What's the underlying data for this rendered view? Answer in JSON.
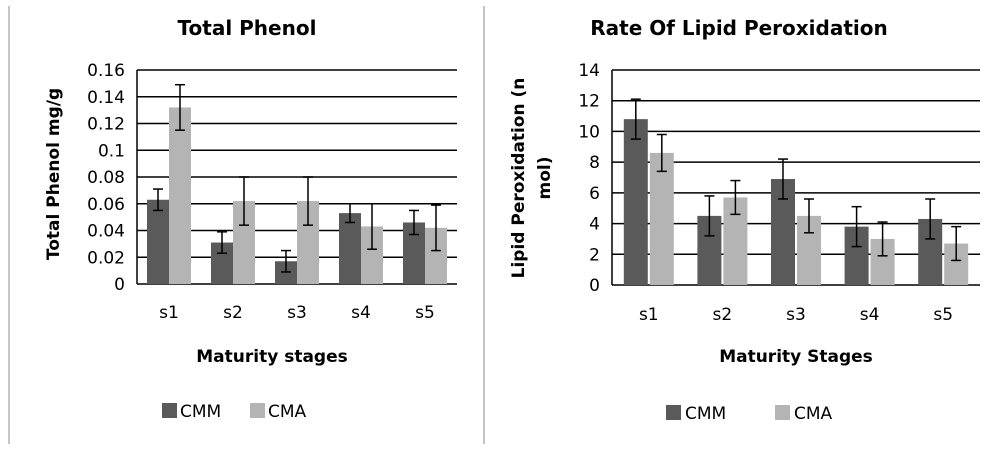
{
  "colors": {
    "CMM": "#5a5a5a",
    "CMA": "#b4b4b4",
    "grid": "#000000",
    "divider": "#888888"
  },
  "chart_data": [
    {
      "type": "bar",
      "title": "Total Phenol",
      "xlabel": "Maturity stages",
      "ylabel": "Total Phenol mg/g",
      "categories": [
        "s1",
        "s2",
        "s3",
        "s4",
        "s5"
      ],
      "ylim": [
        0,
        0.16
      ],
      "yticks": [
        0,
        0.02,
        0.04,
        0.06,
        0.08,
        0.1,
        0.12,
        0.14,
        0.16
      ],
      "ytick_labels": [
        "0",
        "0.02",
        "0.04",
        "0.06",
        "0.08",
        "0.1",
        "0.12",
        "0.14",
        "0.16"
      ],
      "grid": true,
      "legend": "bottom",
      "series": [
        {
          "name": "CMM",
          "values": [
            0.063,
            0.031,
            0.017,
            0.053,
            0.046
          ],
          "errors": [
            0.008,
            0.008,
            0.008,
            0.007,
            0.009
          ]
        },
        {
          "name": "CMA",
          "values": [
            0.132,
            0.062,
            0.062,
            0.043,
            0.042
          ],
          "errors": [
            0.017,
            0.018,
            0.018,
            0.017,
            0.017
          ]
        }
      ]
    },
    {
      "type": "bar",
      "title": "Rate Of Lipid Peroxidation",
      "xlabel": "Maturity Stages",
      "ylabel": "Lipid Peroxidation (n mol)",
      "ylabel_lines": [
        "Lipid Peroxidation (n",
        "mol)"
      ],
      "categories": [
        "s1",
        "s2",
        "s3",
        "s4",
        "s5"
      ],
      "ylim": [
        0,
        14
      ],
      "yticks": [
        0,
        2,
        4,
        6,
        8,
        10,
        12,
        14
      ],
      "ytick_labels": [
        "0",
        "2",
        "4",
        "6",
        "8",
        "10",
        "12",
        "14"
      ],
      "grid": true,
      "legend": "bottom",
      "series": [
        {
          "name": "CMM",
          "values": [
            10.8,
            4.5,
            6.9,
            3.8,
            4.3
          ],
          "errors": [
            1.3,
            1.3,
            1.3,
            1.3,
            1.3
          ]
        },
        {
          "name": "CMA",
          "values": [
            8.6,
            5.7,
            4.5,
            3.0,
            2.7
          ],
          "errors": [
            1.2,
            1.1,
            1.1,
            1.1,
            1.1
          ]
        }
      ]
    }
  ]
}
